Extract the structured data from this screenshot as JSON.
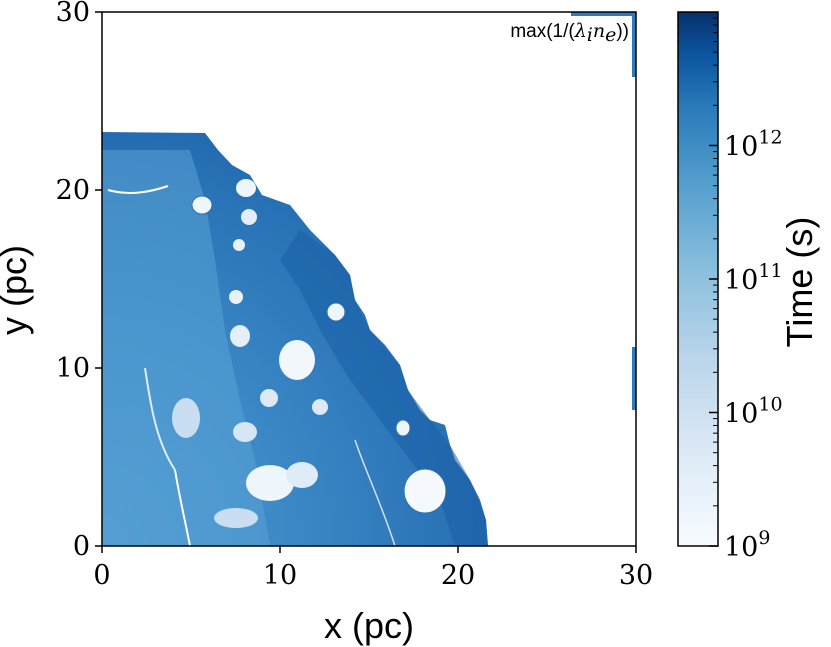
{
  "chart_data": {
    "type": "heatmap",
    "annotation_prefix": "max(1/(",
    "annotation_math": "λ",
    "annotation_sub": "i",
    "annotation_math2": "n",
    "annotation_sub2": "e",
    "annotation_suffix": "))",
    "xlabel": "x (pc)",
    "ylabel": "y (pc)",
    "xlim": [
      0,
      30
    ],
    "ylim": [
      0,
      30
    ],
    "x_ticks": [
      "0",
      "10",
      "20",
      "30"
    ],
    "y_ticks": [
      "0",
      "10",
      "20",
      "30"
    ],
    "colorbar": {
      "label": "Time (s)",
      "scale": "log",
      "range": [
        1000000000.0,
        10000000000000.0
      ],
      "tick_bases": [
        "10",
        "10",
        "10",
        "10"
      ],
      "tick_exponents": [
        "9",
        "10",
        "11",
        "12"
      ],
      "tick_values": [
        1000000000.0,
        10000000000.0,
        100000000000.0,
        1000000000000.0
      ],
      "colormap": "Blues",
      "color_low": "#f7fbff",
      "color_high": "#08306b"
    },
    "regions": {
      "ionized_front_radius_pc_approx": 22,
      "description_values": "irregular quarter-disk region of timescale ~1e11-1e12 s bounded by an ionization front"
    }
  }
}
